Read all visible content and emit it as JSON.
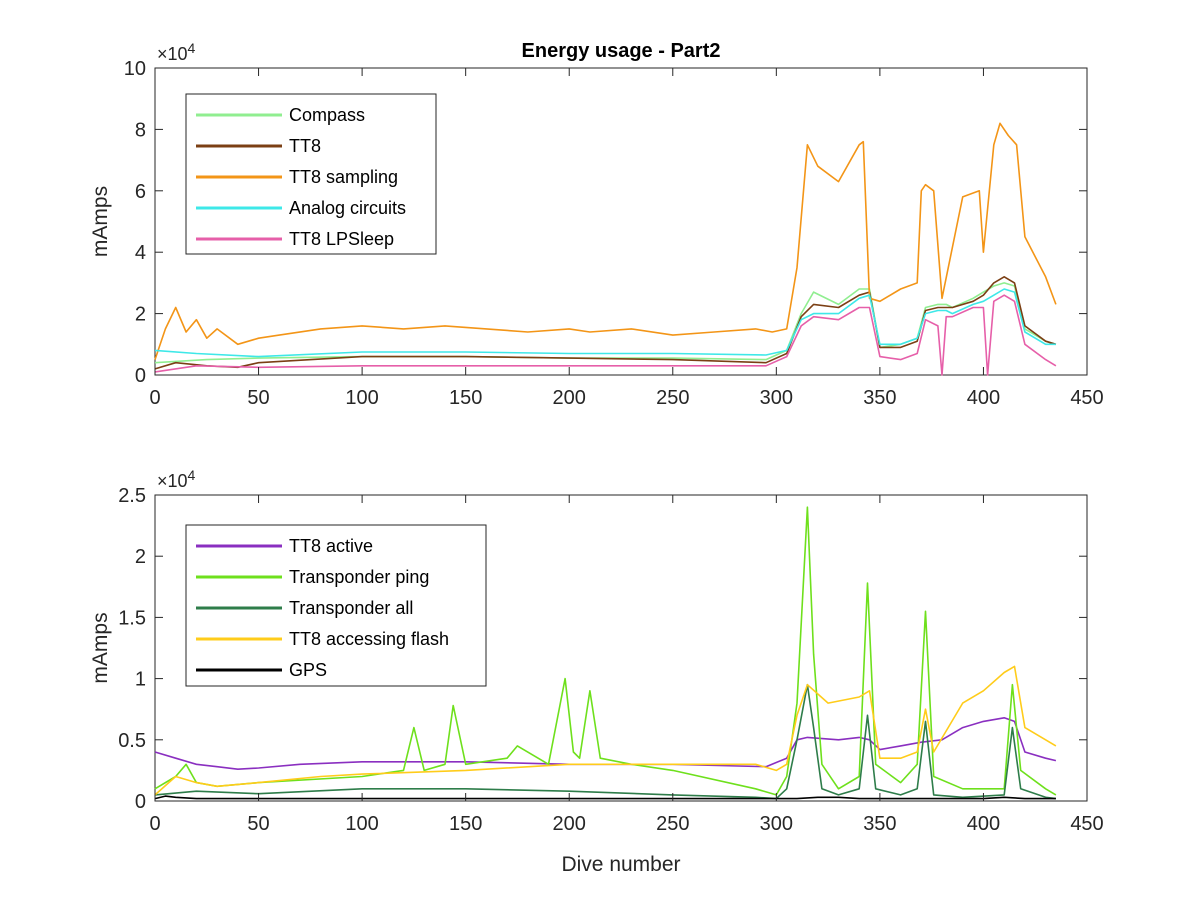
{
  "chart_data": [
    {
      "type": "line",
      "title": "Energy usage - Part2",
      "xlabel": "",
      "ylabel": "mAmps",
      "y_exponent_label": "×10",
      "y_exponent_power": "4",
      "xlim": [
        0,
        450
      ],
      "ylim": [
        0,
        10
      ],
      "y_scale_factor": 10000,
      "x_ticks": [
        "0",
        "50",
        "100",
        "150",
        "200",
        "250",
        "300",
        "350",
        "400",
        "450"
      ],
      "y_ticks": [
        "0",
        "2",
        "4",
        "6",
        "8",
        "10"
      ],
      "grid": false,
      "legend_position": "top-left",
      "series": [
        {
          "name": "Compass",
          "color": "#90ee90",
          "x": [
            0,
            25,
            50,
            100,
            150,
            200,
            250,
            295,
            305,
            312,
            318,
            330,
            340,
            345,
            350,
            360,
            368,
            372,
            378,
            382,
            385,
            395,
            400,
            405,
            410,
            415,
            420,
            430,
            435
          ],
          "y": [
            0.4,
            0.5,
            0.55,
            0.6,
            0.6,
            0.55,
            0.55,
            0.5,
            0.8,
            2.0,
            2.7,
            2.3,
            2.8,
            2.8,
            0.9,
            1.0,
            1.2,
            2.2,
            2.3,
            2.3,
            2.2,
            2.5,
            2.7,
            2.9,
            3.0,
            2.9,
            1.5,
            1.1,
            1.0
          ]
        },
        {
          "name": "TT8",
          "color": "#7b3f14",
          "x": [
            0,
            10,
            25,
            40,
            50,
            100,
            150,
            200,
            250,
            295,
            305,
            312,
            318,
            330,
            340,
            345,
            350,
            360,
            368,
            372,
            378,
            382,
            385,
            395,
            400,
            405,
            410,
            415,
            420,
            430,
            435
          ],
          "y": [
            0.2,
            0.4,
            0.3,
            0.25,
            0.4,
            0.6,
            0.6,
            0.55,
            0.5,
            0.4,
            0.7,
            1.9,
            2.3,
            2.2,
            2.6,
            2.7,
            0.9,
            0.9,
            1.1,
            2.1,
            2.2,
            2.2,
            2.2,
            2.4,
            2.6,
            3.0,
            3.2,
            3.0,
            1.6,
            1.1,
            1.0
          ]
        },
        {
          "name": "TT8 sampling",
          "color": "#f39517",
          "x": [
            0,
            5,
            10,
            15,
            20,
            25,
            30,
            40,
            50,
            60,
            80,
            100,
            120,
            140,
            160,
            180,
            200,
            210,
            230,
            250,
            270,
            290,
            298,
            305,
            310,
            315,
            320,
            330,
            340,
            342,
            345,
            350,
            360,
            368,
            370,
            372,
            376,
            380,
            390,
            398,
            400,
            405,
            408,
            412,
            416,
            420,
            430,
            435
          ],
          "y": [
            0.5,
            1.5,
            2.2,
            1.4,
            1.8,
            1.2,
            1.5,
            1.0,
            1.2,
            1.3,
            1.5,
            1.6,
            1.5,
            1.6,
            1.5,
            1.4,
            1.5,
            1.4,
            1.5,
            1.3,
            1.4,
            1.5,
            1.4,
            1.5,
            3.5,
            7.5,
            6.8,
            6.3,
            7.5,
            7.6,
            2.5,
            2.4,
            2.8,
            3.0,
            6.0,
            6.2,
            6.0,
            2.5,
            5.8,
            6.0,
            4.0,
            7.5,
            8.2,
            7.8,
            7.5,
            4.5,
            3.2,
            2.3
          ]
        },
        {
          "name": "Analog circuits",
          "color": "#3ee8e8",
          "x": [
            0,
            20,
            50,
            100,
            150,
            200,
            250,
            295,
            305,
            312,
            318,
            330,
            340,
            345,
            350,
            360,
            368,
            372,
            378,
            382,
            385,
            395,
            400,
            405,
            410,
            415,
            420,
            430,
            435
          ],
          "y": [
            0.8,
            0.7,
            0.6,
            0.75,
            0.75,
            0.7,
            0.7,
            0.65,
            0.8,
            1.8,
            2.0,
            2.0,
            2.5,
            2.6,
            1.0,
            1.0,
            1.2,
            2.0,
            2.1,
            2.1,
            2.0,
            2.3,
            2.4,
            2.6,
            2.8,
            2.7,
            1.4,
            1.0,
            1.0
          ]
        },
        {
          "name": "TT8 LPSleep",
          "color": "#e65fa9",
          "x": [
            0,
            20,
            50,
            100,
            150,
            200,
            250,
            295,
            305,
            312,
            318,
            330,
            340,
            345,
            350,
            360,
            368,
            372,
            378,
            380,
            382,
            385,
            395,
            400,
            402,
            405,
            410,
            415,
            420,
            430,
            435
          ],
          "y": [
            0.1,
            0.3,
            0.25,
            0.3,
            0.3,
            0.3,
            0.3,
            0.3,
            0.6,
            1.6,
            1.9,
            1.8,
            2.2,
            2.2,
            0.6,
            0.5,
            0.7,
            1.8,
            1.6,
            0.0,
            1.9,
            1.9,
            2.2,
            2.2,
            0.0,
            2.4,
            2.6,
            2.4,
            1.0,
            0.5,
            0.3
          ]
        }
      ]
    },
    {
      "type": "line",
      "title": "",
      "xlabel": "Dive number",
      "ylabel": "mAmps",
      "y_exponent_label": "×10",
      "y_exponent_power": "4",
      "xlim": [
        0,
        450
      ],
      "ylim": [
        0,
        2.5
      ],
      "y_scale_factor": 10000,
      "x_ticks": [
        "0",
        "50",
        "100",
        "150",
        "200",
        "250",
        "300",
        "350",
        "400",
        "450"
      ],
      "y_ticks": [
        "0",
        "0.5",
        "1",
        "1.5",
        "2",
        "2.5"
      ],
      "grid": false,
      "legend_position": "top-left",
      "series": [
        {
          "name": "TT8 active",
          "color": "#8a2fc0",
          "x": [
            0,
            10,
            20,
            30,
            40,
            50,
            70,
            100,
            150,
            200,
            250,
            295,
            305,
            310,
            315,
            330,
            340,
            345,
            350,
            360,
            370,
            380,
            390,
            400,
            410,
            415,
            420,
            430,
            435
          ],
          "y": [
            0.4,
            0.35,
            0.3,
            0.28,
            0.26,
            0.27,
            0.3,
            0.32,
            0.32,
            0.3,
            0.3,
            0.28,
            0.35,
            0.5,
            0.52,
            0.5,
            0.52,
            0.5,
            0.42,
            0.45,
            0.48,
            0.5,
            0.6,
            0.65,
            0.68,
            0.65,
            0.4,
            0.35,
            0.33
          ]
        },
        {
          "name": "Transponder ping",
          "color": "#6ee01c",
          "x": [
            0,
            10,
            15,
            20,
            30,
            50,
            100,
            120,
            125,
            130,
            140,
            144,
            150,
            170,
            175,
            190,
            198,
            202,
            205,
            210,
            215,
            230,
            250,
            290,
            300,
            305,
            310,
            315,
            318,
            322,
            330,
            340,
            344,
            348,
            360,
            368,
            372,
            376,
            390,
            410,
            414,
            418,
            430,
            435
          ],
          "y": [
            0.1,
            0.2,
            0.3,
            0.15,
            0.12,
            0.15,
            0.2,
            0.25,
            0.6,
            0.25,
            0.3,
            0.78,
            0.3,
            0.35,
            0.45,
            0.3,
            1.0,
            0.4,
            0.35,
            0.9,
            0.35,
            0.3,
            0.25,
            0.1,
            0.05,
            0.2,
            0.8,
            2.4,
            1.2,
            0.3,
            0.1,
            0.2,
            1.78,
            0.3,
            0.15,
            0.3,
            1.55,
            0.2,
            0.1,
            0.1,
            0.95,
            0.25,
            0.1,
            0.05
          ]
        },
        {
          "name": "Transponder all",
          "color": "#2e7d4a",
          "x": [
            0,
            20,
            50,
            100,
            150,
            200,
            250,
            290,
            300,
            305,
            310,
            315,
            318,
            322,
            330,
            340,
            344,
            348,
            360,
            368,
            372,
            376,
            390,
            410,
            414,
            418,
            430,
            435
          ],
          "y": [
            0.05,
            0.08,
            0.06,
            0.1,
            0.1,
            0.08,
            0.05,
            0.03,
            0.02,
            0.1,
            0.5,
            0.95,
            0.6,
            0.1,
            0.05,
            0.1,
            0.7,
            0.1,
            0.05,
            0.1,
            0.65,
            0.05,
            0.03,
            0.05,
            0.6,
            0.1,
            0.03,
            0.02
          ]
        },
        {
          "name": "TT8 accessing flash",
          "color": "#ffcc1a",
          "x": [
            0,
            10,
            20,
            30,
            50,
            80,
            100,
            150,
            200,
            250,
            290,
            300,
            305,
            310,
            315,
            325,
            340,
            345,
            350,
            360,
            368,
            372,
            376,
            390,
            400,
            410,
            415,
            420,
            430,
            435
          ],
          "y": [
            0.05,
            0.2,
            0.15,
            0.12,
            0.15,
            0.2,
            0.22,
            0.25,
            0.3,
            0.3,
            0.3,
            0.25,
            0.3,
            0.7,
            0.95,
            0.8,
            0.85,
            0.9,
            0.35,
            0.35,
            0.4,
            0.75,
            0.4,
            0.8,
            0.9,
            1.05,
            1.1,
            0.6,
            0.5,
            0.45
          ]
        },
        {
          "name": "GPS",
          "color": "#000000",
          "x": [
            0,
            5,
            10,
            20,
            50,
            100,
            150,
            200,
            250,
            300,
            310,
            320,
            330,
            340,
            350,
            360,
            400,
            410,
            420,
            435
          ],
          "y": [
            0.02,
            0.04,
            0.03,
            0.02,
            0.02,
            0.02,
            0.02,
            0.02,
            0.02,
            0.02,
            0.02,
            0.03,
            0.03,
            0.02,
            0.02,
            0.02,
            0.02,
            0.03,
            0.02,
            0.02
          ]
        }
      ]
    }
  ]
}
